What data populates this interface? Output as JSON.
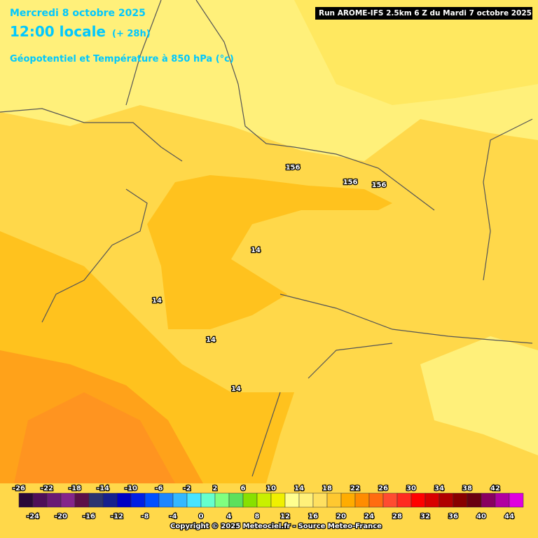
{
  "header": {
    "date": "Mercredi 8 octobre 2025",
    "time": "12:00 locale",
    "offset": "(+ 28h)",
    "title": "Géopotentiel et Température à 850 hPa (°c)",
    "run": "Run AROME-IFS 2.5km 6 Z du Mardi 7 octobre 2025"
  },
  "contour_labels": [
    "156",
    "156",
    "156",
    "14",
    "14",
    "14",
    "14"
  ],
  "legend": {
    "ticks": [
      -26,
      -24,
      -22,
      -20,
      -18,
      -16,
      -14,
      -12,
      -10,
      -8,
      -6,
      -4,
      -2,
      0,
      2,
      4,
      6,
      8,
      10,
      12,
      14,
      16,
      18,
      20,
      22,
      24,
      26,
      28,
      30,
      32,
      34,
      36,
      38,
      40,
      42,
      44
    ],
    "colors": [
      "#2a0838",
      "#4e0f58",
      "#6a1a74",
      "#84258a",
      "#5c1048",
      "#2c3470",
      "#16208e",
      "#0000c4",
      "#0020e4",
      "#0050ff",
      "#1e86ff",
      "#34b8ff",
      "#48e4ff",
      "#66ffcc",
      "#80ff80",
      "#5ce05c",
      "#88e000",
      "#c8f000",
      "#f0f000",
      "#ffff90",
      "#fff07a",
      "#ffe060",
      "#ffc830",
      "#ffac00",
      "#ff8c00",
      "#ff6c10",
      "#ff4c30",
      "#ff2a20",
      "#ff0000",
      "#d80000",
      "#b00000",
      "#880000",
      "#6a0010",
      "#880060",
      "#b000a0",
      "#e000e0",
      "#ff40ff",
      "#ff80ff"
    ]
  },
  "footer": {
    "copyright": "Copyright © 2025 Meteociel.fr - Source Meteo-France"
  }
}
